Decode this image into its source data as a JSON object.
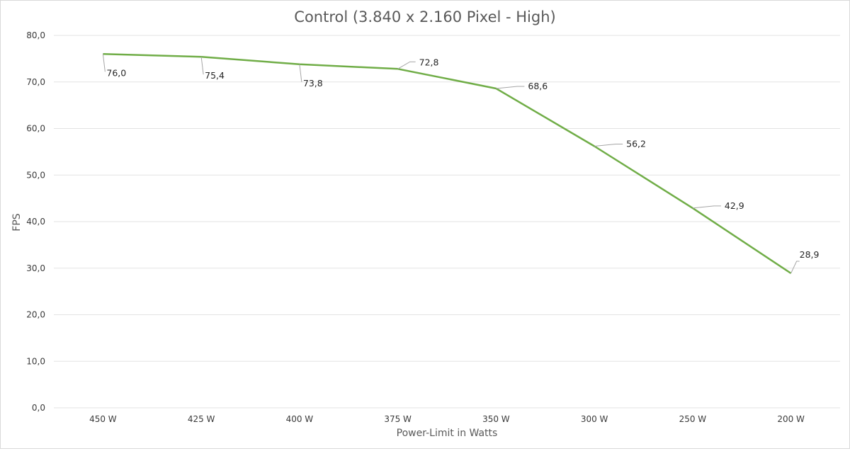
{
  "chart_data": {
    "type": "line",
    "title": "Control (3.840 x 2.160 Pixel - High)",
    "xlabel": "Power-Limit in Watts",
    "ylabel": "FPS",
    "categories": [
      "450 W",
      "425 W",
      "400 W",
      "375 W",
      "350 W",
      "300 W",
      "250 W",
      "200 W"
    ],
    "series": [
      {
        "values": [
          76.0,
          75.4,
          73.8,
          72.8,
          68.6,
          56.2,
          42.9,
          28.9
        ],
        "labels": [
          "76,0",
          "75,4",
          "73,8",
          "72,8",
          "68,6",
          "56,2",
          "42,9",
          "28,9"
        ],
        "color": "#70ad47"
      }
    ],
    "ylim": [
      0,
      80
    ],
    "yticks": [
      "0,0",
      "10,0",
      "20,0",
      "30,0",
      "40,0",
      "50,0",
      "60,0",
      "70,0",
      "80,0"
    ],
    "grid": true,
    "legend": "none"
  }
}
